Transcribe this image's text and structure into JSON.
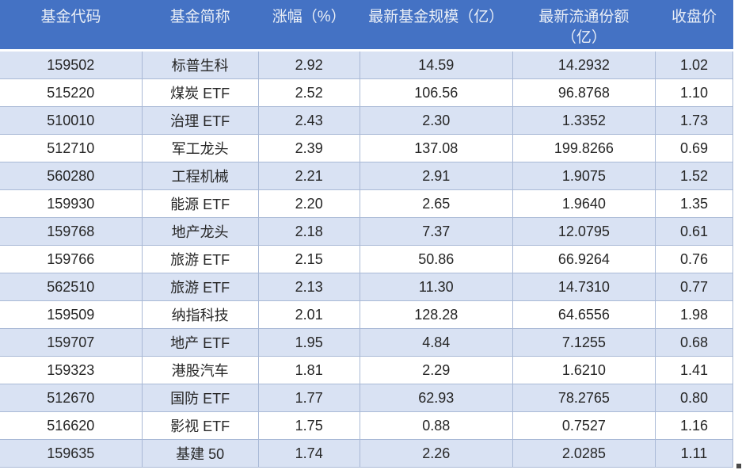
{
  "chart_data": {
    "type": "table",
    "title": "",
    "columns": [
      "基金代码",
      "基金简称",
      "涨幅（%）",
      "最新基金规模（亿）",
      "最新流通份额（亿）",
      "收盘价"
    ],
    "column_keys": [
      "code",
      "name",
      "change",
      "scale",
      "shares",
      "close"
    ],
    "rows": [
      {
        "code": "159502",
        "name": "标普生科",
        "change": "2.92",
        "scale": "14.59",
        "shares": "14.2932",
        "close": "1.02"
      },
      {
        "code": "515220",
        "name": "煤炭 ETF",
        "change": "2.52",
        "scale": "106.56",
        "shares": "96.8768",
        "close": "1.10"
      },
      {
        "code": "510010",
        "name": "治理 ETF",
        "change": "2.43",
        "scale": "2.30",
        "shares": "1.3352",
        "close": "1.73"
      },
      {
        "code": "512710",
        "name": "军工龙头",
        "change": "2.39",
        "scale": "137.08",
        "shares": "199.8266",
        "close": "0.69"
      },
      {
        "code": "560280",
        "name": "工程机械",
        "change": "2.21",
        "scale": "2.91",
        "shares": "1.9075",
        "close": "1.52"
      },
      {
        "code": "159930",
        "name": "能源 ETF",
        "change": "2.20",
        "scale": "2.65",
        "shares": "1.9640",
        "close": "1.35"
      },
      {
        "code": "159768",
        "name": "地产龙头",
        "change": "2.18",
        "scale": "7.37",
        "shares": "12.0795",
        "close": "0.61"
      },
      {
        "code": "159766",
        "name": "旅游 ETF",
        "change": "2.15",
        "scale": "50.86",
        "shares": "66.9264",
        "close": "0.76"
      },
      {
        "code": "562510",
        "name": "旅游 ETF",
        "change": "2.13",
        "scale": "11.30",
        "shares": "14.7310",
        "close": "0.77"
      },
      {
        "code": "159509",
        "name": "纳指科技",
        "change": "2.01",
        "scale": "128.28",
        "shares": "64.6556",
        "close": "1.98"
      },
      {
        "code": "159707",
        "name": "地产 ETF",
        "change": "1.95",
        "scale": "4.84",
        "shares": "7.1255",
        "close": "0.68"
      },
      {
        "code": "159323",
        "name": "港股汽车",
        "change": "1.81",
        "scale": "2.29",
        "shares": "1.6210",
        "close": "1.41"
      },
      {
        "code": "512670",
        "name": "国防 ETF",
        "change": "1.77",
        "scale": "62.93",
        "shares": "78.2765",
        "close": "0.80"
      },
      {
        "code": "516620",
        "name": "影视 ETF",
        "change": "1.75",
        "scale": "0.88",
        "shares": "0.7527",
        "close": "1.16"
      },
      {
        "code": "159635",
        "name": "基建 50",
        "change": "1.74",
        "scale": "2.26",
        "shares": "2.0285",
        "close": "1.11"
      }
    ],
    "layout": {
      "banding": "odd rows light blue, even rows white",
      "header_position": "top"
    }
  },
  "style": {
    "header_bg": "#4472C4",
    "header_text": "#E9EEF6",
    "band_row_bg": "#D9E2F3",
    "plain_row_bg": "#FFFFFF",
    "border_color": "#A9B9D6",
    "cell_text": "#262626"
  }
}
